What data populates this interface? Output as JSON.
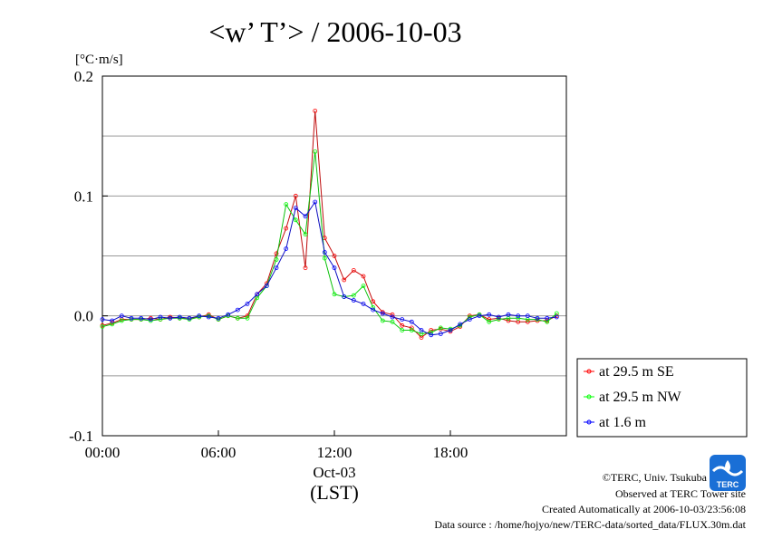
{
  "chart_data": {
    "type": "line",
    "title": "<w’ T’> / 2006-10-03",
    "ylabel": "[°C·m/s]",
    "xlabel": "(LST)",
    "x_date_label": "Oct-03",
    "ylim": [
      -0.1,
      0.2
    ],
    "xlim": [
      0,
      24
    ],
    "y_ticks": [
      -0.1,
      0.0,
      0.1,
      0.2
    ],
    "y_tick_labels": [
      "-0.1",
      "0.0",
      "0.1",
      "0.2"
    ],
    "x_ticks": [
      0,
      6,
      12,
      18
    ],
    "x_tick_labels": [
      "00:00",
      "06:00",
      "12:00",
      "18:00"
    ],
    "grid": "horizontal",
    "legend_position": "right",
    "x": [
      0.0,
      0.5,
      1.0,
      1.5,
      2.0,
      2.5,
      3.0,
      3.5,
      4.0,
      4.5,
      5.0,
      5.5,
      6.0,
      6.5,
      7.0,
      7.5,
      8.0,
      8.5,
      9.0,
      9.5,
      10.0,
      10.5,
      11.0,
      11.5,
      12.0,
      12.5,
      13.0,
      13.5,
      14.0,
      14.5,
      15.0,
      15.5,
      16.0,
      16.5,
      17.0,
      17.5,
      18.0,
      18.5,
      19.0,
      19.5,
      20.0,
      20.5,
      21.0,
      21.5,
      22.0,
      22.5,
      23.0,
      23.5
    ],
    "series": [
      {
        "name": "at 29.5 m SE",
        "color": "#ff0000",
        "values": [
          -0.008,
          -0.006,
          -0.003,
          -0.003,
          -0.003,
          -0.002,
          -0.003,
          -0.001,
          -0.002,
          -0.002,
          -0.001,
          0.001,
          -0.003,
          0.0,
          -0.002,
          0.0,
          0.018,
          0.027,
          0.052,
          0.073,
          0.1,
          0.04,
          0.171,
          0.065,
          0.05,
          0.03,
          0.038,
          0.033,
          0.012,
          0.003,
          0.001,
          -0.008,
          -0.01,
          -0.018,
          -0.012,
          -0.011,
          -0.013,
          -0.009,
          0.0,
          0.001,
          -0.003,
          -0.002,
          -0.004,
          -0.005,
          -0.005,
          -0.004,
          -0.004,
          0.0
        ]
      },
      {
        "name": "at 29.5 m NW",
        "color": "#00ff00",
        "values": [
          -0.009,
          -0.007,
          -0.004,
          -0.003,
          -0.003,
          -0.004,
          -0.003,
          -0.002,
          -0.002,
          -0.003,
          -0.001,
          0.0,
          -0.003,
          0.0,
          -0.002,
          -0.002,
          0.015,
          0.025,
          0.047,
          0.093,
          0.08,
          0.068,
          0.137,
          0.048,
          0.018,
          0.016,
          0.017,
          0.025,
          0.007,
          -0.004,
          -0.005,
          -0.012,
          -0.012,
          -0.015,
          -0.014,
          -0.01,
          -0.011,
          -0.008,
          -0.001,
          0.001,
          -0.005,
          -0.003,
          -0.002,
          -0.002,
          -0.003,
          -0.003,
          -0.005,
          0.002
        ]
      },
      {
        "name": "at 1.6 m",
        "color": "#0000ff",
        "values": [
          -0.003,
          -0.004,
          0.0,
          -0.002,
          -0.002,
          -0.003,
          -0.001,
          -0.002,
          -0.001,
          -0.002,
          0.0,
          -0.001,
          -0.002,
          0.001,
          0.005,
          0.01,
          0.018,
          0.025,
          0.04,
          0.056,
          0.09,
          0.083,
          0.095,
          0.053,
          0.04,
          0.016,
          0.013,
          0.01,
          0.005,
          0.002,
          -0.001,
          -0.003,
          -0.005,
          -0.012,
          -0.016,
          -0.015,
          -0.012,
          -0.007,
          -0.003,
          0.0,
          0.001,
          -0.001,
          0.001,
          0.0,
          0.0,
          -0.002,
          -0.002,
          -0.001
        ]
      }
    ]
  },
  "credits": {
    "copyright": "©TERC, Univ. Tsukuba",
    "observed": "Observed at TERC Tower site",
    "created": "Created Automatically at 2006-10-03/23:56:08",
    "source": "Data source : /home/hojyo/new/TERC-data/sorted_data/FLUX.30m.dat",
    "logo_text": "TERC"
  }
}
